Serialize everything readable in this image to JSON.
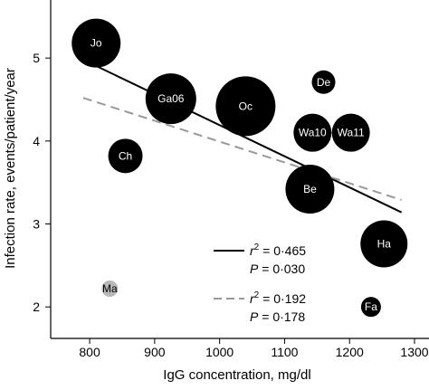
{
  "chart_data": {
    "type": "scatter",
    "xlabel": "IgG concentration, mg/dl",
    "ylabel": "Infection rate, events/patient/year",
    "xlim": [
      740,
      1300
    ],
    "ylim": [
      1.62,
      5.7
    ],
    "x_ticks": [
      800,
      900,
      1000,
      1100,
      1200,
      1300
    ],
    "y_ticks": [
      2,
      3,
      4,
      5
    ],
    "x_tick_labels": [
      "800",
      "900",
      "1000",
      "1100",
      "1200",
      "1300"
    ],
    "y_tick_labels": [
      "2",
      "3",
      "4",
      "5"
    ],
    "grid": false,
    "points": [
      {
        "label": "Jo",
        "x": 810,
        "y": 5.18,
        "size": 27,
        "color": "#000000",
        "text_color": "#ffffff"
      },
      {
        "label": "Ga06",
        "x": 925,
        "y": 4.51,
        "size": 28,
        "color": "#000000",
        "text_color": "#ffffff"
      },
      {
        "label": "Oc",
        "x": 1040,
        "y": 4.42,
        "size": 33,
        "color": "#000000",
        "text_color": "#ffffff"
      },
      {
        "label": "De",
        "x": 1160,
        "y": 4.71,
        "size": 13,
        "color": "#000000",
        "text_color": "#ffffff"
      },
      {
        "label": "Wa10",
        "x": 1143,
        "y": 4.1,
        "size": 21,
        "color": "#000000",
        "text_color": "#ffffff"
      },
      {
        "label": "Wa11",
        "x": 1202,
        "y": 4.1,
        "size": 21,
        "color": "#000000",
        "text_color": "#ffffff"
      },
      {
        "label": "Ch",
        "x": 855,
        "y": 3.82,
        "size": 19,
        "color": "#000000",
        "text_color": "#ffffff"
      },
      {
        "label": "Be",
        "x": 1139,
        "y": 3.42,
        "size": 27,
        "color": "#000000",
        "text_color": "#ffffff"
      },
      {
        "label": "Ha",
        "x": 1253,
        "y": 2.76,
        "size": 26,
        "color": "#000000",
        "text_color": "#ffffff"
      },
      {
        "label": "Fa",
        "x": 1233,
        "y": 2.0,
        "size": 11,
        "color": "#000000",
        "text_color": "#ffffff"
      },
      {
        "label": "Ma",
        "x": 831,
        "y": 2.22,
        "size": 9,
        "color": "#b8b8b8",
        "text_color": "#000000"
      }
    ],
    "fit_lines": [
      {
        "style": "solid",
        "color": "#000000",
        "x": [
          790,
          1280
        ],
        "y": [
          4.98,
          3.14
        ],
        "r2": "0·465",
        "p": "0·030"
      },
      {
        "style": "dashed",
        "color": "#999999",
        "x": [
          790,
          1280
        ],
        "y": [
          4.52,
          3.29
        ],
        "r2": "0·192",
        "p": "0·178"
      }
    ],
    "legend_position": "bottom-right",
    "legend": [
      {
        "r_sym": "r",
        "exp": "2",
        "eq": " = ",
        "r2": "0·465",
        "p_sym": "P",
        "p": "0·030"
      },
      {
        "r_sym": "r",
        "exp": "2",
        "eq": " = ",
        "r2": "0·192",
        "p_sym": "P",
        "p": "0·178"
      }
    ]
  }
}
